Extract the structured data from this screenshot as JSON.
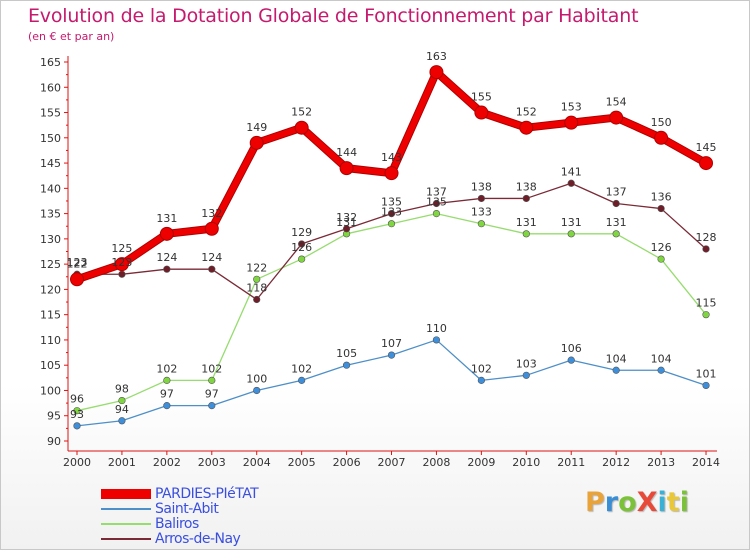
{
  "header": {
    "title": "Evolution de la Dotation Globale de Fonctionnement par Habitant",
    "subtitle": "(en € et par an)"
  },
  "logo": {
    "text": "ProXiti",
    "colors": [
      "#e8a33a",
      "#3a8fd4",
      "#7bc23a",
      "#e84a3a",
      "#3ab0d4",
      "#e8c83a",
      "#7bc23a"
    ]
  },
  "chart_data": {
    "type": "line",
    "title": "Evolution de la Dotation Globale de Fonctionnement par Habitant",
    "subtitle": "(en € et par an)",
    "xlabel": "",
    "ylabel": "",
    "x": [
      "2000",
      "2001",
      "2002",
      "2003",
      "2004",
      "2005",
      "2006",
      "2007",
      "2008",
      "2009",
      "2010",
      "2011",
      "2012",
      "2013",
      "2014"
    ],
    "ylim": [
      90,
      165
    ],
    "yticks": [
      "90",
      "95",
      "100",
      "105",
      "110",
      "115",
      "120",
      "125",
      "130",
      "135",
      "140",
      "145",
      "150",
      "155",
      "160",
      "165"
    ],
    "grid": false,
    "legend_position": "bottom-left",
    "series": [
      {
        "name": "PARDIES-PIéTAT",
        "color": "#ee0000",
        "emphasis": true,
        "values": [
          122,
          125,
          131,
          132,
          149,
          152,
          144,
          143,
          163,
          155,
          152,
          153,
          154,
          150,
          145
        ],
        "labels": [
          "122",
          "125",
          "131",
          "132",
          "149",
          "152",
          "144",
          "143",
          "163",
          "155",
          "152",
          "153",
          "154",
          "150",
          "145"
        ]
      },
      {
        "name": "Saint-Abit",
        "color": "#4d8fc8",
        "marker": "#3d8fdc",
        "values": [
          93,
          94,
          97,
          97,
          100,
          102,
          105,
          107,
          110,
          102,
          103,
          106,
          104,
          104,
          101
        ],
        "labels": [
          "93",
          "94",
          "97",
          "97",
          "100",
          "102",
          "105",
          "107",
          "110",
          "102",
          "103",
          "106",
          "104",
          "104",
          "101"
        ]
      },
      {
        "name": "Baliros",
        "color": "#96dc6e",
        "marker": "#80d640",
        "values": [
          96,
          98,
          102,
          102,
          122,
          126,
          131,
          133,
          135,
          133,
          131,
          131,
          131,
          126,
          115
        ],
        "labels": [
          "96",
          "98",
          "102",
          "102",
          "122",
          "126",
          "131",
          "133",
          "135",
          "133",
          "131",
          "131",
          "131",
          "126",
          "115"
        ]
      },
      {
        "name": "Arros-de-Nay",
        "color": "#7a2a36",
        "marker": "#6e1e28",
        "values": [
          123,
          123,
          124,
          124,
          118,
          129,
          132,
          135,
          137,
          138,
          138,
          141,
          137,
          136,
          128
        ],
        "labels": [
          "123",
          "123",
          "124",
          "124",
          "118",
          "129",
          "132",
          "135",
          "137",
          "138",
          "138",
          "141",
          "137",
          "136",
          "128"
        ]
      }
    ]
  }
}
